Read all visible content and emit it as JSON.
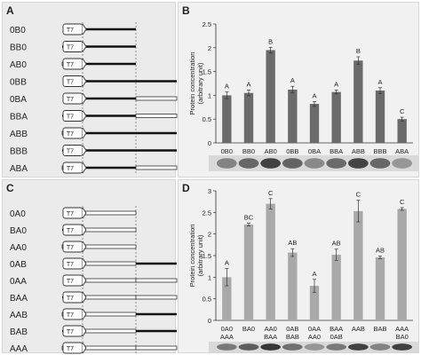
{
  "panels": {
    "A": {
      "label": "A",
      "promoter": "T7",
      "constructs": [
        {
          "name": "0B0",
          "segments": [
            "none",
            "B",
            "none"
          ]
        },
        {
          "name": "BB0",
          "segments": [
            "B",
            "B",
            "none"
          ]
        },
        {
          "name": "AB0",
          "segments": [
            "A",
            "B",
            "none"
          ]
        },
        {
          "name": "0BB",
          "segments": [
            "none",
            "B",
            "B"
          ]
        },
        {
          "name": "0BA",
          "segments": [
            "none",
            "B",
            "A"
          ]
        },
        {
          "name": "BBA",
          "segments": [
            "B",
            "B",
            "A"
          ]
        },
        {
          "name": "ABB",
          "segments": [
            "A",
            "B",
            "B"
          ]
        },
        {
          "name": "BBB",
          "segments": [
            "B",
            "B",
            "B"
          ]
        },
        {
          "name": "ABA",
          "segments": [
            "A",
            "B",
            "A"
          ]
        }
      ]
    },
    "B": {
      "label": "B",
      "chart_data": {
        "type": "bar",
        "categories": [
          "0B0",
          "BB0",
          "AB0",
          "0BB",
          "0BA",
          "BBA",
          "ABB",
          "BBB",
          "ABA"
        ],
        "values": [
          1.0,
          1.05,
          1.95,
          1.12,
          0.82,
          1.07,
          1.73,
          1.1,
          0.5
        ],
        "errors": [
          0.07,
          0.06,
          0.06,
          0.07,
          0.05,
          0.04,
          0.08,
          0.06,
          0.04
        ],
        "letters": [
          "A",
          "A",
          "B",
          "A",
          "A",
          "A",
          "B",
          "A",
          "C"
        ],
        "ylabel": "Protein concentration\n(arbitrary unit)",
        "ylabel_lines": [
          "Protein concentration",
          "(arbitrary unit)"
        ],
        "ylim": [
          0,
          2.5
        ],
        "yticks": [
          "0",
          "0.5",
          "1",
          "1.5",
          "2",
          "2.5"
        ],
        "bar_color": "#6b6b6b",
        "bottom_labels": []
      }
    },
    "C": {
      "label": "C",
      "promoter": "T7",
      "constructs": [
        {
          "name": "0A0",
          "segments": [
            "none",
            "A",
            "none"
          ]
        },
        {
          "name": "BA0",
          "segments": [
            "B",
            "A",
            "none"
          ]
        },
        {
          "name": "AA0",
          "segments": [
            "A",
            "A",
            "none"
          ]
        },
        {
          "name": "0AB",
          "segments": [
            "none",
            "A",
            "B"
          ]
        },
        {
          "name": "0AA",
          "segments": [
            "none",
            "A",
            "A"
          ]
        },
        {
          "name": "BAA",
          "segments": [
            "B",
            "A",
            "A"
          ]
        },
        {
          "name": "AAB",
          "segments": [
            "A",
            "A",
            "B"
          ]
        },
        {
          "name": "BAB",
          "segments": [
            "B",
            "A",
            "B"
          ]
        },
        {
          "name": "AAA",
          "segments": [
            "A",
            "A",
            "A"
          ]
        }
      ]
    },
    "D": {
      "label": "D",
      "chart_data": {
        "type": "bar",
        "categories": [
          "0A0",
          "BA0",
          "AA0",
          "0AB",
          "0AA",
          "BAA",
          "AAB",
          "BAB",
          "AAA"
        ],
        "values": [
          1.0,
          2.22,
          2.7,
          1.57,
          0.8,
          1.52,
          2.53,
          1.46,
          2.58
        ],
        "errors": [
          0.2,
          0.03,
          0.12,
          0.09,
          0.15,
          0.13,
          0.25,
          0.03,
          0.03
        ],
        "letters": [
          "A",
          "BC",
          "C",
          "AB",
          "A",
          "AB",
          "C",
          "AB",
          "C"
        ],
        "ylabel": "Protein concentration\n(arbitrary unit)",
        "ylabel_lines": [
          "Protein concentration",
          "(arbitrary unit)"
        ],
        "ylim": [
          0,
          3
        ],
        "yticks": [
          "0",
          "0.5",
          "1",
          "1.5",
          "2",
          "2.5",
          "3"
        ],
        "bar_color": "#a9a9a9",
        "bottom_labels": [
          {
            "text": "AAA",
            "slot": 0
          },
          {
            "text": "BAA",
            "slot": 2
          },
          {
            "text": "BAB",
            "slot": 3
          },
          {
            "text": "AA0",
            "slot": 4
          },
          {
            "text": "0AB",
            "slot": 5
          },
          {
            "text": "BA0",
            "slot": 8
          }
        ]
      }
    }
  }
}
